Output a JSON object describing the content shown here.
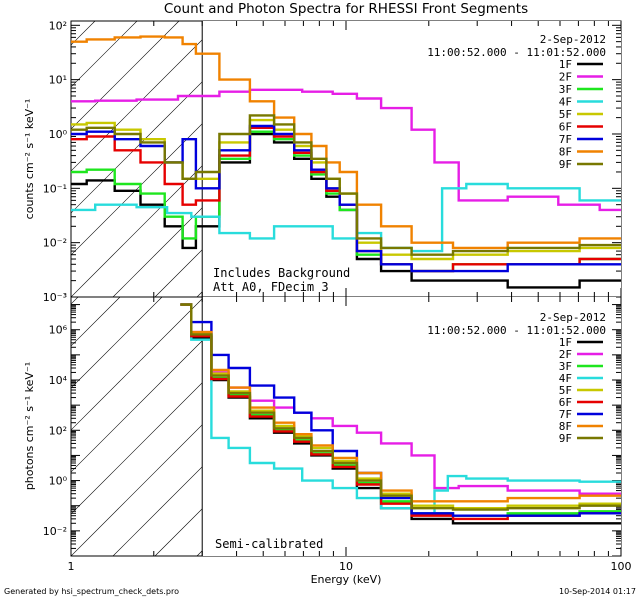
{
  "figure": {
    "title": "Count and Photon Spectra for RHESSI Front Segments",
    "footer_left": "Generated by hsi_spectrum_check_dets.pro",
    "footer_right": "10-Sep-2014 01:17",
    "colors": {
      "1F": "#000000",
      "2F": "#e61ee6",
      "3F": "#1ee61e",
      "4F": "#28dcdc",
      "5F": "#c8c800",
      "6F": "#e60000",
      "7F": "#0000dc",
      "8F": "#f08200",
      "9F": "#787800"
    }
  },
  "chart_data": [
    {
      "type": "line",
      "panel": "top",
      "title": "Count and Photon Spectra for RHESSI Front Segments",
      "date": "2-Sep-2012",
      "time_range": "11:00:52.000 - 11:01:52.000",
      "xlabel": "",
      "ylabel": "counts cm⁻² s⁻¹ keV⁻¹",
      "xscale": "log",
      "yscale": "log",
      "xlim": [
        1,
        100
      ],
      "ylim": [
        0.001,
        120
      ],
      "yticks": [
        "10⁻³",
        "10⁻²",
        "10⁻¹",
        "10⁰",
        "10¹",
        "10²"
      ],
      "annotations": [
        "Includes Background",
        "Att A0, FDecim 3"
      ],
      "low_energy_cutoff_keV": 3,
      "legend": [
        "1F",
        "2F",
        "3F",
        "4F",
        "5F",
        "6F",
        "7F",
        "8F",
        "9F"
      ],
      "series": [
        {
          "name": "1F",
          "x": [
            1,
            1.3,
            1.6,
            2,
            2.4,
            2.7,
            3,
            4,
            5,
            6,
            7,
            8,
            9,
            10,
            12,
            15,
            20,
            30,
            50,
            100
          ],
          "values": [
            0.12,
            0.14,
            0.09,
            0.05,
            0.02,
            0.008,
            0.02,
            0.3,
            1.0,
            0.7,
            0.35,
            0.15,
            0.07,
            0.04,
            0.005,
            0.003,
            0.002,
            0.002,
            0.0015,
            0.002
          ]
        },
        {
          "name": "2F",
          "x": [
            1,
            1.5,
            2,
            3,
            4,
            5,
            6,
            8,
            10,
            12,
            15,
            20,
            22,
            30,
            50,
            70,
            100
          ],
          "values": [
            4,
            4.1,
            4.3,
            5,
            6,
            6.5,
            6.5,
            6,
            5.5,
            4.5,
            3,
            1.2,
            0.3,
            0.06,
            0.07,
            0.05,
            0.04
          ]
        },
        {
          "name": "3F",
          "x": [
            1,
            1.3,
            1.6,
            2,
            2.4,
            2.7,
            3,
            4,
            5,
            6,
            7,
            8,
            9,
            10,
            12,
            15,
            20,
            30,
            50,
            100
          ],
          "values": [
            0.2,
            0.22,
            0.12,
            0.08,
            0.03,
            0.012,
            0.03,
            0.35,
            1.1,
            0.8,
            0.4,
            0.18,
            0.08,
            0.04,
            0.006,
            0.004,
            0.003,
            0.004,
            0.004,
            0.005
          ]
        },
        {
          "name": "4F",
          "x": [
            1,
            1.5,
            2,
            2.5,
            3,
            4,
            5,
            6,
            8,
            10,
            12,
            15,
            20,
            25,
            30,
            50,
            100
          ],
          "values": [
            0.04,
            0.05,
            0.045,
            0.035,
            0.03,
            0.015,
            0.012,
            0.02,
            0.02,
            0.012,
            0.015,
            0.008,
            0.007,
            0.1,
            0.12,
            0.1,
            0.06
          ]
        },
        {
          "name": "5F",
          "x": [
            1,
            1.3,
            1.6,
            2,
            2.4,
            2.7,
            3,
            4,
            5,
            6,
            7,
            8,
            9,
            10,
            12,
            15,
            20,
            30,
            50,
            100
          ],
          "values": [
            1.5,
            1.6,
            1.2,
            0.8,
            0.3,
            0.15,
            0.15,
            0.7,
            1.8,
            1.2,
            0.6,
            0.3,
            0.15,
            0.08,
            0.01,
            0.006,
            0.005,
            0.006,
            0.007,
            0.008
          ]
        },
        {
          "name": "6F",
          "x": [
            1,
            1.3,
            1.6,
            2,
            2.4,
            2.7,
            3,
            4,
            5,
            6,
            7,
            8,
            9,
            10,
            12,
            15,
            20,
            30,
            50,
            100
          ],
          "values": [
            0.8,
            0.9,
            0.5,
            0.3,
            0.12,
            0.05,
            0.06,
            0.4,
            1.3,
            0.9,
            0.45,
            0.2,
            0.09,
            0.05,
            0.007,
            0.004,
            0.003,
            0.004,
            0.004,
            0.005
          ]
        },
        {
          "name": "7F",
          "x": [
            1,
            1.3,
            1.6,
            2,
            2.4,
            2.7,
            3,
            4,
            5,
            6,
            7,
            8,
            9,
            10,
            12,
            15,
            20,
            30,
            50,
            100
          ],
          "values": [
            1.0,
            1.1,
            0.8,
            0.6,
            0.3,
            0.8,
            0.1,
            0.5,
            1.4,
            1.0,
            0.5,
            0.22,
            0.1,
            0.05,
            0.007,
            0.004,
            0.003,
            0.003,
            0.004,
            0.004
          ]
        },
        {
          "name": "8F",
          "x": [
            1,
            1.3,
            1.6,
            2,
            2.4,
            2.7,
            3,
            4,
            5,
            6,
            7,
            8,
            9,
            10,
            12,
            15,
            20,
            30,
            50,
            100
          ],
          "values": [
            50,
            55,
            60,
            62,
            60,
            45,
            30,
            10,
            4,
            2,
            1,
            0.6,
            0.3,
            0.2,
            0.05,
            0.02,
            0.01,
            0.008,
            0.01,
            0.012
          ]
        },
        {
          "name": "9F",
          "x": [
            1,
            1.3,
            1.6,
            2,
            2.4,
            2.7,
            3,
            4,
            5,
            6,
            7,
            8,
            9,
            10,
            12,
            15,
            20,
            30,
            50,
            100
          ],
          "values": [
            1.2,
            1.3,
            1.0,
            0.7,
            0.3,
            0.15,
            0.2,
            1.0,
            2.2,
            1.5,
            0.7,
            0.35,
            0.15,
            0.08,
            0.012,
            0.008,
            0.006,
            0.007,
            0.008,
            0.009
          ]
        }
      ]
    },
    {
      "type": "line",
      "panel": "bottom",
      "date": "2-Sep-2012",
      "time_range": "11:00:52.000 - 11:01:52.000",
      "xlabel": "Energy (keV)",
      "ylabel": "photons cm⁻² s⁻¹ keV⁻¹",
      "xscale": "log",
      "yscale": "log",
      "xlim": [
        1,
        100
      ],
      "ylim": [
        0.001,
        20000000
      ],
      "xticks": [
        "1",
        "10",
        "100"
      ],
      "yticks": [
        "10⁻²",
        "10⁰",
        "10²",
        "10⁴",
        "10⁶"
      ],
      "annotations": [
        "Semi-calibrated"
      ],
      "low_energy_cutoff_keV": 3,
      "legend": [
        "1F",
        "2F",
        "3F",
        "4F",
        "5F",
        "6F",
        "7F",
        "8F",
        "9F"
      ],
      "series": [
        {
          "name": "1F",
          "x": [
            2.5,
            3,
            3.5,
            4,
            5,
            6,
            7,
            8,
            10,
            12,
            15,
            20,
            30,
            50,
            100
          ],
          "values": [
            10000000,
            500000,
            10000,
            2000,
            300,
            80,
            30,
            10,
            3,
            0.5,
            0.08,
            0.03,
            0.02,
            0.02,
            0.02
          ]
        },
        {
          "name": "2F",
          "x": [
            2.5,
            3,
            3.5,
            4,
            5,
            6,
            7,
            8,
            10,
            12,
            15,
            20,
            22,
            30,
            50,
            100
          ],
          "values": [
            10000000,
            800000,
            20000,
            5000,
            1500,
            800,
            500,
            300,
            150,
            80,
            30,
            10,
            0.5,
            0.6,
            0.4,
            0.3
          ]
        },
        {
          "name": "3F",
          "x": [
            2.5,
            3,
            3.5,
            4,
            5,
            6,
            7,
            8,
            10,
            12,
            15,
            20,
            30,
            50,
            100
          ],
          "values": [
            10000000,
            600000,
            12000,
            2500,
            400,
            100,
            40,
            12,
            4,
            0.8,
            0.15,
            0.05,
            0.04,
            0.05,
            0.06
          ]
        },
        {
          "name": "4F",
          "x": [
            2.5,
            3,
            3.5,
            4,
            5,
            6,
            8,
            10,
            12,
            15,
            20,
            22,
            25,
            30,
            50,
            100
          ],
          "values": [
            10000000,
            400000,
            50,
            20,
            5,
            3,
            1,
            0.5,
            0.2,
            0.08,
            0.05,
            0.4,
            1.5,
            1.2,
            1,
            0.9
          ]
        },
        {
          "name": "5F",
          "x": [
            2.5,
            3,
            3.5,
            4,
            5,
            6,
            7,
            8,
            10,
            12,
            15,
            20,
            30,
            50,
            100
          ],
          "values": [
            10000000,
            700000,
            18000,
            3500,
            600,
            150,
            60,
            20,
            6,
            1.2,
            0.3,
            0.1,
            0.08,
            0.1,
            0.12
          ]
        },
        {
          "name": "6F",
          "x": [
            2.5,
            3,
            3.5,
            4,
            5,
            6,
            7,
            8,
            10,
            12,
            15,
            20,
            30,
            50,
            100
          ],
          "values": [
            10000000,
            550000,
            11000,
            2200,
            350,
            90,
            35,
            11,
            3.5,
            0.7,
            0.12,
            0.04,
            0.03,
            0.04,
            0.05
          ]
        },
        {
          "name": "7F",
          "x": [
            2.5,
            3,
            3.5,
            4,
            5,
            6,
            7,
            8,
            10,
            12,
            15,
            20,
            30,
            50,
            100
          ],
          "values": [
            10000000,
            2000000,
            100000,
            30000,
            6000,
            2000,
            500,
            100,
            15,
            2,
            0.2,
            0.05,
            0.04,
            0.04,
            0.05
          ]
        },
        {
          "name": "8F",
          "x": [
            2.5,
            3,
            3.5,
            4,
            5,
            6,
            7,
            8,
            10,
            12,
            15,
            20,
            30,
            50,
            100
          ],
          "values": [
            10000000,
            800000,
            25000,
            5000,
            800,
            200,
            70,
            25,
            8,
            2,
            0.4,
            0.15,
            0.15,
            0.2,
            0.25
          ]
        },
        {
          "name": "9F",
          "x": [
            2.5,
            3,
            3.5,
            4,
            5,
            6,
            7,
            8,
            10,
            12,
            15,
            20,
            30,
            50,
            100
          ],
          "values": [
            10000000,
            650000,
            15000,
            3000,
            500,
            120,
            50,
            15,
            5,
            1,
            0.25,
            0.08,
            0.07,
            0.08,
            0.1
          ]
        }
      ]
    }
  ]
}
